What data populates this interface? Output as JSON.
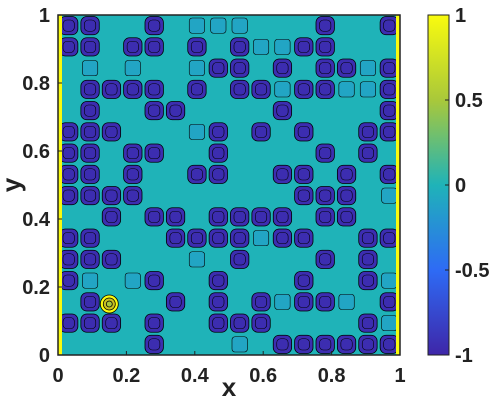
{
  "chart_data": {
    "type": "heatmap",
    "xlabel": "x",
    "ylabel": "y",
    "xlim": [
      0,
      1
    ],
    "ylim": [
      0,
      1
    ],
    "x_ticks": [
      "0",
      "0.2",
      "0.4",
      "0.6",
      "0.8",
      "1"
    ],
    "y_ticks": [
      "0",
      "0.2",
      "0.4",
      "0.6",
      "0.8",
      "1"
    ],
    "colorbar": {
      "range": [
        -1,
        1
      ],
      "ticks": [
        "-1",
        "-0.5",
        "0",
        "0.5",
        "1"
      ],
      "colormap": "parula"
    },
    "contour_lines": true,
    "grid": false,
    "notes_visible": {
      "boundary_value": 1,
      "dominant_values": [
        -1,
        0
      ],
      "peak_point": {
        "x": 0.15,
        "y": 0.15,
        "value": 1
      }
    },
    "colors": {
      "low": "#3E26A8",
      "mid": "#1FB3B8",
      "high": "#F9FB0E",
      "contour": "#000000"
    }
  }
}
